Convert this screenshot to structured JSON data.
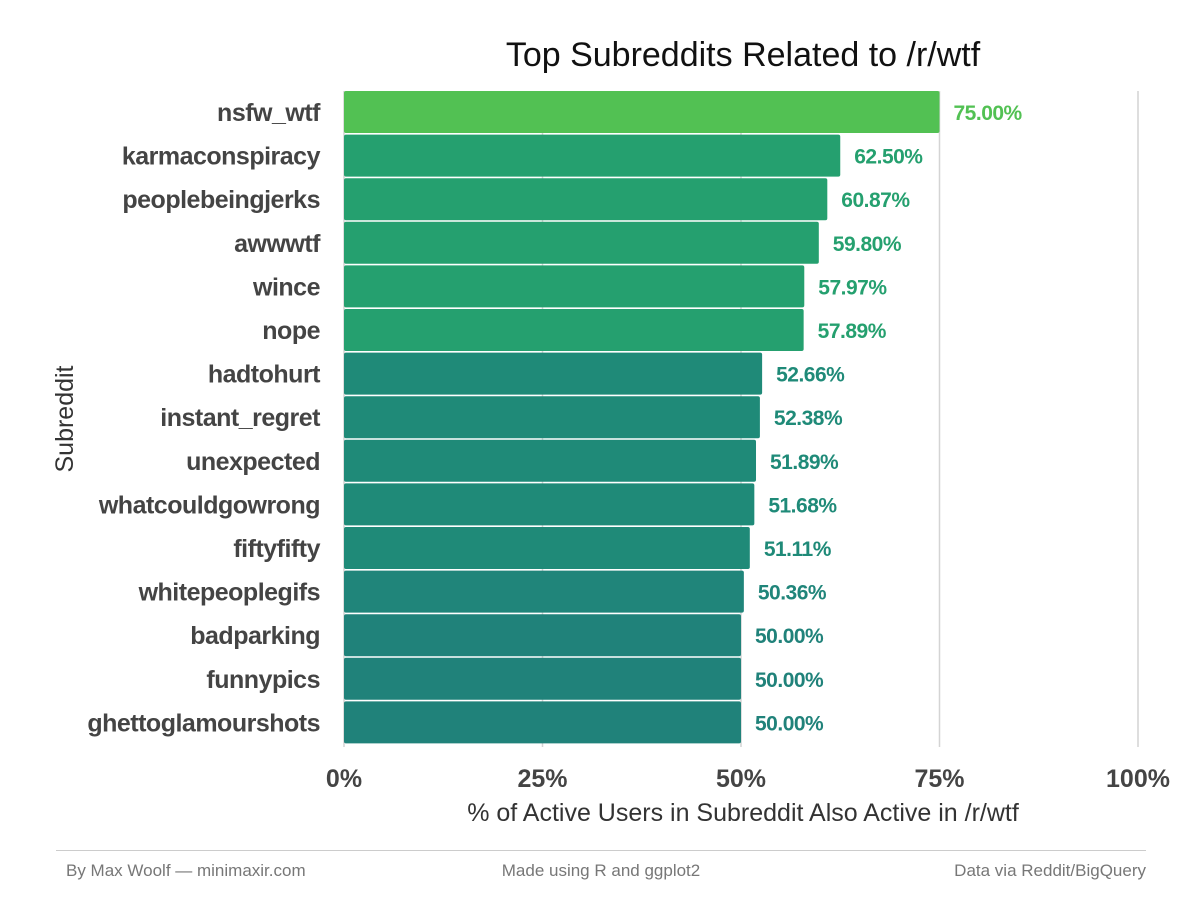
{
  "chart_data": {
    "type": "bar",
    "orientation": "horizontal",
    "title": "Top Subreddits Related to /r/wtf",
    "xlabel": "% of Active Users in Subreddit Also Active in /r/wtf",
    "ylabel": "Subreddit",
    "xlim": [
      0,
      100
    ],
    "xticks": [
      "0%",
      "25%",
      "50%",
      "75%",
      "100%"
    ],
    "grid": "vertical",
    "categories": [
      "nsfw_wtf",
      "karmaconspiracy",
      "peoplebeingjerks",
      "awwwtf",
      "wince",
      "nope",
      "hadtohurt",
      "instant_regret",
      "unexpected",
      "whatcouldgowrong",
      "fiftyfifty",
      "whitepeoplegifs",
      "badparking",
      "funnypics",
      "ghettoglamourshots"
    ],
    "values": [
      75.0,
      62.5,
      60.87,
      59.8,
      57.97,
      57.89,
      52.66,
      52.38,
      51.89,
      51.68,
      51.11,
      50.36,
      50.0,
      50.0,
      50.0
    ],
    "value_labels": [
      "75.00%",
      "62.50%",
      "60.87%",
      "59.80%",
      "57.97%",
      "57.89%",
      "52.66%",
      "52.38%",
      "51.89%",
      "51.68%",
      "51.11%",
      "50.36%",
      "50.00%",
      "50.00%",
      "50.00%"
    ],
    "colors": [
      "#52c153",
      "#25a06f",
      "#25a06f",
      "#25a06f",
      "#25a06f",
      "#25a06f",
      "#1f8a78",
      "#1f8a78",
      "#1f8a78",
      "#1f8a78",
      "#1f8a78",
      "#20857a",
      "#20827a",
      "#20827a",
      "#20827a"
    ]
  },
  "footer": {
    "left": "By Max Woolf — minimaxir.com",
    "center": "Made using R and ggplot2",
    "right": "Data via Reddit/BigQuery"
  }
}
